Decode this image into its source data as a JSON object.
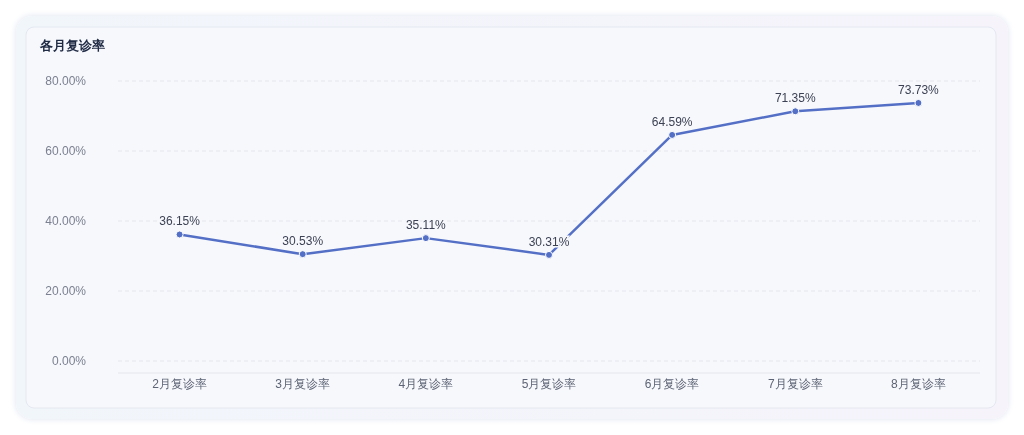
{
  "chart_data": {
    "type": "line",
    "title": "各月复诊率",
    "categories": [
      "2月复诊率",
      "3月复诊率",
      "4月复诊率",
      "5月复诊率",
      "6月复诊率",
      "7月复诊率",
      "8月复诊率"
    ],
    "series": [
      {
        "color": "#5470c6",
        "values": [
          36.15,
          30.53,
          35.11,
          30.31,
          64.59,
          71.35,
          73.73
        ],
        "value_labels": [
          "36.15%",
          "30.53%",
          "35.11%",
          "30.31%",
          "64.59%",
          "71.35%",
          "73.73%"
        ]
      }
    ],
    "ylim": [
      0,
      80
    ],
    "yticks": [
      {
        "value": 0,
        "label": "0.00%"
      },
      {
        "value": 20,
        "label": "20.00%"
      },
      {
        "value": 40,
        "label": "40.00%"
      },
      {
        "value": 60,
        "label": "60.00%"
      },
      {
        "value": 80,
        "label": "80.00%"
      }
    ],
    "grid": "y",
    "marker": "circle",
    "line_style": "solid"
  }
}
